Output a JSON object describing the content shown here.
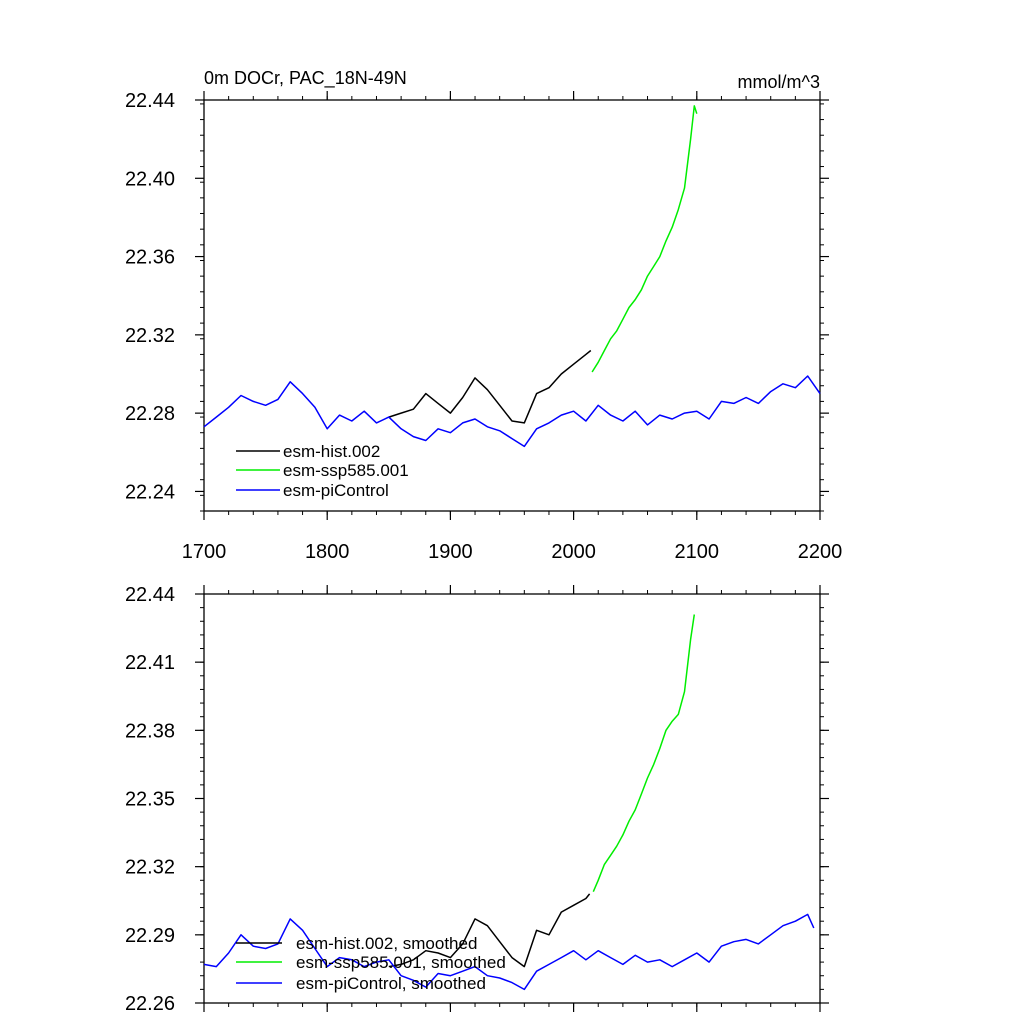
{
  "chart_data": [
    {
      "type": "line",
      "title": "0m DOCr, PAC_18N-49N",
      "units": "mmol/m^3",
      "xlim": [
        1700,
        2200
      ],
      "ylim": [
        22.23,
        22.44
      ],
      "xticks": [
        1700,
        1800,
        1900,
        2000,
        2100,
        2200
      ],
      "xtick_labels": [
        "1700",
        "1800",
        "1900",
        "2000",
        "2100",
        "2200"
      ],
      "yticks": [
        22.24,
        22.28,
        22.32,
        22.36,
        22.4,
        22.44
      ],
      "ytick_labels": [
        "22.24",
        "22.28",
        "22.32",
        "22.36",
        "22.40",
        "22.44"
      ],
      "legend_position": "bottom-left",
      "series": [
        {
          "name": "esm-hist.002",
          "color": "#000000",
          "x": [
            1850,
            1860,
            1870,
            1880,
            1890,
            1900,
            1910,
            1920,
            1930,
            1940,
            1950,
            1960,
            1970,
            1980,
            1990,
            2000,
            2010,
            2014
          ],
          "y": [
            22.278,
            22.28,
            22.282,
            22.29,
            22.285,
            22.28,
            22.288,
            22.298,
            22.292,
            22.284,
            22.276,
            22.275,
            22.29,
            22.293,
            22.3,
            22.305,
            22.31,
            22.312
          ]
        },
        {
          "name": "esm-ssp585.001",
          "color": "#00ee00",
          "x": [
            2015,
            2020,
            2025,
            2030,
            2035,
            2040,
            2045,
            2050,
            2055,
            2060,
            2065,
            2070,
            2075,
            2080,
            2085,
            2090,
            2095,
            2098,
            2100
          ],
          "y": [
            22.301,
            22.306,
            22.312,
            22.318,
            22.322,
            22.328,
            22.334,
            22.338,
            22.343,
            22.35,
            22.355,
            22.36,
            22.368,
            22.375,
            22.384,
            22.395,
            22.42,
            22.437,
            22.433
          ]
        },
        {
          "name": "esm-piControl",
          "color": "#0000ff",
          "x": [
            1700,
            1710,
            1720,
            1730,
            1740,
            1750,
            1760,
            1770,
            1780,
            1790,
            1800,
            1810,
            1820,
            1830,
            1840,
            1850,
            1860,
            1870,
            1880,
            1890,
            1900,
            1910,
            1920,
            1930,
            1940,
            1950,
            1960,
            1970,
            1980,
            1990,
            2000,
            2010,
            2020,
            2030,
            2040,
            2050,
            2060,
            2070,
            2080,
            2090,
            2100,
            2110,
            2120,
            2130,
            2140,
            2150,
            2160,
            2170,
            2180,
            2190,
            2200
          ],
          "y": [
            22.273,
            22.278,
            22.283,
            22.289,
            22.286,
            22.284,
            22.287,
            22.296,
            22.29,
            22.283,
            22.272,
            22.279,
            22.276,
            22.281,
            22.275,
            22.278,
            22.272,
            22.268,
            22.266,
            22.272,
            22.27,
            22.275,
            22.277,
            22.273,
            22.271,
            22.267,
            22.263,
            22.272,
            22.275,
            22.279,
            22.281,
            22.276,
            22.284,
            22.279,
            22.276,
            22.281,
            22.274,
            22.279,
            22.277,
            22.28,
            22.281,
            22.277,
            22.286,
            22.285,
            22.288,
            22.285,
            22.291,
            22.295,
            22.293,
            22.299,
            22.29
          ]
        }
      ]
    },
    {
      "type": "line",
      "title": "",
      "xlim": [
        1700,
        2200
      ],
      "ylim": [
        22.26,
        22.44
      ],
      "xticks": [
        1700,
        1800,
        1900,
        2000,
        2100,
        2200
      ],
      "yticks": [
        22.26,
        22.29,
        22.32,
        22.35,
        22.38,
        22.41,
        22.44
      ],
      "ytick_labels": [
        "22.26",
        "22.29",
        "22.32",
        "22.35",
        "22.38",
        "22.41",
        "22.44"
      ],
      "legend_position": "bottom-left",
      "series": [
        {
          "name": "esm-hist.002, smoothed",
          "color": "#000000",
          "x": [
            1850,
            1860,
            1870,
            1880,
            1890,
            1900,
            1910,
            1920,
            1930,
            1940,
            1950,
            1960,
            1970,
            1980,
            1990,
            2000,
            2010,
            2013
          ],
          "y": [
            22.276,
            22.277,
            22.279,
            22.283,
            22.282,
            22.28,
            22.286,
            22.297,
            22.294,
            22.287,
            22.28,
            22.276,
            22.292,
            22.29,
            22.3,
            22.303,
            22.306,
            22.308
          ]
        },
        {
          "name": "esm-ssp585.001, smoothed",
          "color": "#00ee00",
          "x": [
            2016,
            2020,
            2025,
            2030,
            2035,
            2040,
            2045,
            2050,
            2055,
            2060,
            2065,
            2070,
            2075,
            2080,
            2085,
            2090,
            2095,
            2098
          ],
          "y": [
            22.309,
            22.314,
            22.321,
            22.325,
            22.329,
            22.334,
            22.34,
            22.345,
            22.352,
            22.359,
            22.365,
            22.372,
            22.38,
            22.384,
            22.387,
            22.397,
            22.42,
            22.431
          ]
        },
        {
          "name": "esm-piControl, smoothed",
          "color": "#0000ff",
          "x": [
            1700,
            1710,
            1720,
            1730,
            1740,
            1750,
            1760,
            1770,
            1780,
            1790,
            1800,
            1810,
            1820,
            1830,
            1840,
            1850,
            1860,
            1870,
            1880,
            1890,
            1900,
            1910,
            1920,
            1930,
            1940,
            1950,
            1960,
            1970,
            1980,
            1990,
            2000,
            2010,
            2020,
            2030,
            2040,
            2050,
            2060,
            2070,
            2080,
            2090,
            2100,
            2110,
            2120,
            2130,
            2140,
            2150,
            2160,
            2170,
            2180,
            2190,
            2195
          ],
          "y": [
            22.277,
            22.276,
            22.282,
            22.29,
            22.285,
            22.284,
            22.286,
            22.297,
            22.292,
            22.284,
            22.276,
            22.28,
            22.279,
            22.276,
            22.278,
            22.279,
            22.272,
            22.27,
            22.267,
            22.273,
            22.272,
            22.274,
            22.276,
            22.272,
            22.271,
            22.269,
            22.266,
            22.274,
            22.277,
            22.28,
            22.283,
            22.279,
            22.283,
            22.28,
            22.277,
            22.281,
            22.278,
            22.279,
            22.276,
            22.279,
            22.282,
            22.278,
            22.285,
            22.287,
            22.288,
            22.286,
            22.29,
            22.294,
            22.296,
            22.299,
            22.293
          ]
        }
      ]
    }
  ]
}
